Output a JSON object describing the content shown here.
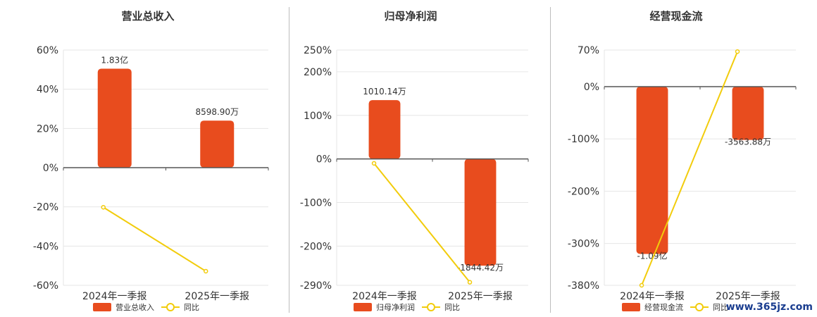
{
  "chart_data": [
    {
      "type": "bar",
      "title": "营业总收入",
      "categories": [
        "2024年一季报",
        "2025年一季报"
      ],
      "series": [
        {
          "name": "营业总收入",
          "kind": "bar",
          "values": [
            50.5,
            24.0
          ],
          "labels": [
            "1.83亿",
            "8598.90万"
          ],
          "color": "#e84c1e"
        },
        {
          "name": "同比",
          "kind": "line",
          "values": [
            -20.2,
            -52.8
          ],
          "color": "#f2cc0c"
        }
      ],
      "yticks": [
        60,
        40,
        20,
        0,
        -20,
        -40,
        -60
      ],
      "ytick_labels": [
        "60%",
        "40%",
        "20%",
        "0%",
        "-20%",
        "-40%",
        "-60%"
      ],
      "ylim": [
        -60,
        60
      ],
      "grid": true,
      "legend": "bottom"
    },
    {
      "type": "bar",
      "title": "归母净利润",
      "categories": [
        "2024年一季报",
        "2025年一季报"
      ],
      "series": [
        {
          "name": "归母净利润",
          "kind": "bar",
          "values": [
            135,
            -245
          ],
          "labels": [
            "1010.14万",
            "-1844.42万"
          ],
          "color": "#e84c1e"
        },
        {
          "name": "同比",
          "kind": "line",
          "values": [
            -10,
            -283
          ],
          "color": "#f2cc0c"
        }
      ],
      "yticks": [
        250,
        200,
        100,
        0,
        -100,
        -200,
        -290
      ],
      "ytick_labels": [
        "250%",
        "200%",
        "100%",
        "0%",
        "-100%",
        "-200%",
        "-290%"
      ],
      "ylim": [
        -290,
        250
      ],
      "grid": true,
      "legend": "bottom"
    },
    {
      "type": "bar",
      "title": "经营现金流",
      "categories": [
        "2024年一季报",
        "2025年一季报"
      ],
      "series": [
        {
          "name": "经营现金流",
          "kind": "bar",
          "values": [
            -320,
            -102
          ],
          "labels": [
            "-1.09亿",
            "-3563.88万"
          ],
          "color": "#e84c1e"
        },
        {
          "name": "同比",
          "kind": "line",
          "values": [
            -380,
            67
          ],
          "color": "#f2cc0c"
        }
      ],
      "yticks": [
        70,
        0,
        -100,
        -200,
        -300,
        -380
      ],
      "ytick_labels": [
        "70%",
        "0%",
        "-100%",
        "-200%",
        "-300%",
        "-380%"
      ],
      "ylim": [
        -380,
        70
      ],
      "grid": true,
      "legend": "bottom"
    }
  ],
  "watermark": "www.365jz.com"
}
